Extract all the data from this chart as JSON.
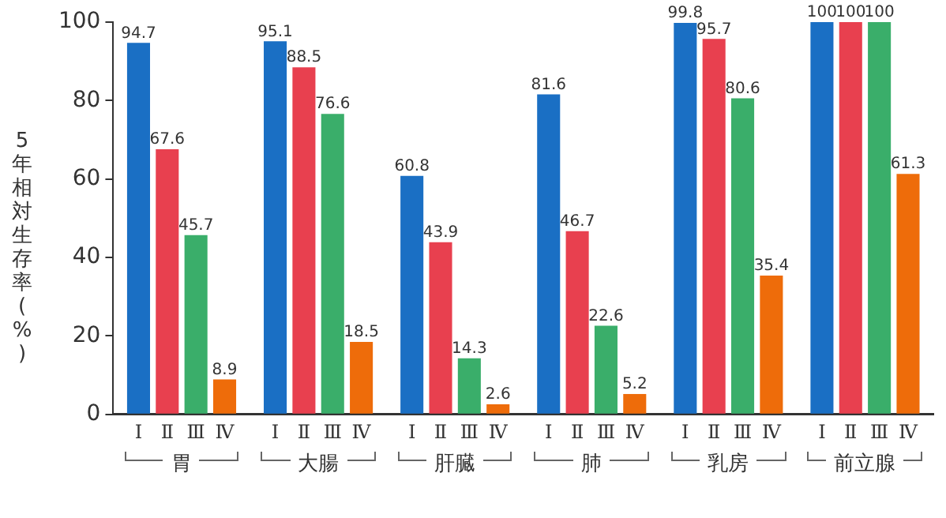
{
  "chart_data": {
    "type": "bar",
    "ylabel": "5年相対生存率(%)",
    "categories": [
      "胃",
      "大腸",
      "肝臓",
      "肺",
      "乳房",
      "前立腺"
    ],
    "series": [
      {
        "name": "Ⅰ",
        "color": "#1a6fc4",
        "values": [
          94.7,
          95.1,
          60.8,
          81.6,
          99.8,
          100
        ]
      },
      {
        "name": "Ⅱ",
        "color": "#e8404f",
        "values": [
          67.6,
          88.5,
          43.9,
          46.7,
          95.7,
          100
        ]
      },
      {
        "name": "Ⅲ",
        "color": "#3aae6a",
        "values": [
          45.7,
          76.6,
          14.3,
          22.6,
          80.6,
          100
        ]
      },
      {
        "name": "Ⅳ",
        "color": "#ee6c0a",
        "values": [
          8.9,
          18.5,
          2.6,
          5.2,
          35.4,
          61.3
        ]
      }
    ],
    "ylim": [
      0,
      100
    ],
    "yticks": [
      0,
      20,
      40,
      60,
      80,
      100
    ],
    "grid": false,
    "legend": false,
    "data_labels": true
  }
}
